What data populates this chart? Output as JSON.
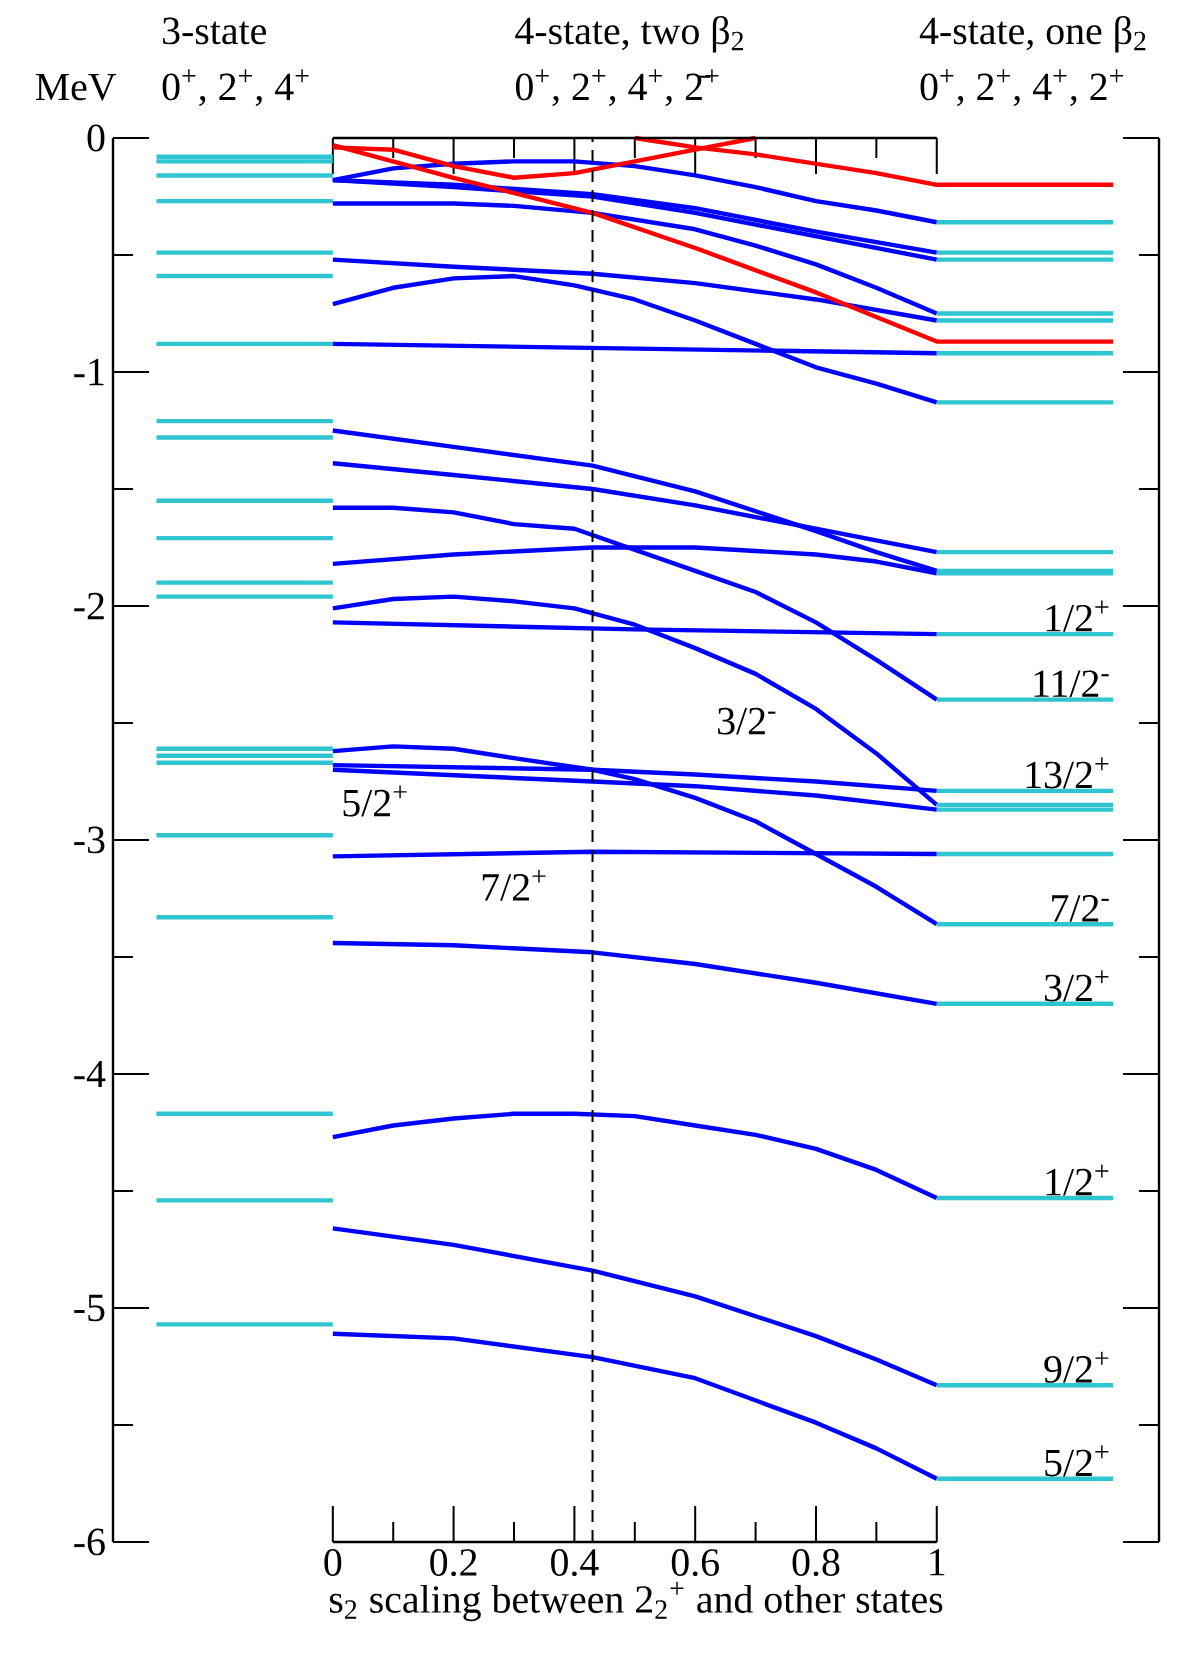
{
  "chart_data": {
    "type": "line",
    "title": "4-state, two β$_{2}$",
    "subtitle": "0$^{+}$, 2$^{+}$, 4$^{+}$, 2̄$^{+}$",
    "xlabel": "s$_{2}$ scaling between 2$_{2}$$^{+}$ and other states",
    "ylabel": "MeV",
    "xlim": [
      -0.364,
      1.368
    ],
    "ylim": [
      -6,
      0
    ],
    "xticks": [
      0,
      {
        "value": 0.1,
        "label": null
      },
      0.2,
      {
        "value": 0.3,
        "label": null
      },
      0.4,
      {
        "value": 0.5,
        "label": null
      },
      0.6,
      {
        "value": 0.7,
        "label": null
      },
      0.8,
      {
        "value": 0.9,
        "label": null
      },
      1
    ],
    "yticks": [
      0,
      {
        "value": -0.5,
        "label": null
      },
      -1,
      {
        "value": -1.5,
        "label": null
      },
      -2,
      {
        "value": -2.5,
        "label": null
      },
      -3,
      {
        "value": -3.5,
        "label": null
      },
      -4,
      {
        "value": -4.5,
        "label": null
      },
      -5,
      {
        "value": -5.5,
        "label": null
      },
      -6
    ],
    "ref_lines": [
      {
        "axis": "x",
        "value": 0.43,
        "color": "#000000",
        "line_style": "dashed"
      }
    ],
    "annotations": [
      "3-state",
      "0$^{+}$, 2$^{+}$, 4$^{+}$",
      "4-state, one β$_{2}$",
      "0$^{+}$, 2$^{+}$, 4$^{+}$, 2$^{+}$",
      {
        "text": "1/2$^{+}$",
        "y": -2.12
      },
      {
        "text": "11/2$^{-}$",
        "y": -2.4
      },
      {
        "text": "13/2$^{+}$",
        "y": -2.79
      },
      {
        "text": "7/2$^{-}$",
        "y": -3.36
      },
      {
        "text": "3/2$^{+}$",
        "y": -3.7
      },
      {
        "text": "1/2$^{+}$",
        "y": -4.53
      },
      {
        "text": "9/2$^{+}$",
        "y": -5.33
      },
      {
        "text": "5/2$^{+}$",
        "y": -5.73
      },
      "3/2$^{-}$",
      "5/2$^{+}$",
      "7/2$^{+}$"
    ],
    "series": [
      {
        "color": "#2ec4d0",
        "x": [
          -0.292,
          0
        ],
        "values": [
          -0.08,
          -0.08
        ]
      },
      {
        "color": "#2ec4d0",
        "x": [
          -0.292,
          0
        ],
        "values": [
          -0.1,
          -0.1
        ]
      },
      {
        "color": "#2ec4d0",
        "x": [
          -0.292,
          0
        ],
        "values": [
          -0.16,
          -0.16
        ]
      },
      {
        "color": "#2ec4d0",
        "x": [
          -0.292,
          0
        ],
        "values": [
          -0.27,
          -0.27
        ]
      },
      {
        "color": "#2ec4d0",
        "x": [
          -0.292,
          0
        ],
        "values": [
          -0.49,
          -0.49
        ]
      },
      {
        "color": "#2ec4d0",
        "x": [
          -0.292,
          0
        ],
        "values": [
          -0.59,
          -0.59
        ]
      },
      {
        "color": "#2ec4d0",
        "x": [
          -0.292,
          0
        ],
        "values": [
          -0.88,
          -0.88
        ]
      },
      {
        "color": "#2ec4d0",
        "x": [
          -0.292,
          0
        ],
        "values": [
          -1.21,
          -1.21
        ]
      },
      {
        "color": "#2ec4d0",
        "x": [
          -0.292,
          0
        ],
        "values": [
          -1.28,
          -1.28
        ]
      },
      {
        "color": "#2ec4d0",
        "x": [
          -0.292,
          0
        ],
        "values": [
          -1.55,
          -1.55
        ]
      },
      {
        "color": "#2ec4d0",
        "x": [
          -0.292,
          0
        ],
        "values": [
          -1.71,
          -1.71
        ]
      },
      {
        "color": "#2ec4d0",
        "x": [
          -0.292,
          0
        ],
        "values": [
          -1.9,
          -1.9
        ]
      },
      {
        "color": "#2ec4d0",
        "x": [
          -0.292,
          0
        ],
        "values": [
          -1.96,
          -1.96
        ]
      },
      {
        "color": "#2ec4d0",
        "x": [
          -0.292,
          0
        ],
        "values": [
          -2.61,
          -2.61
        ]
      },
      {
        "color": "#2ec4d0",
        "x": [
          -0.292,
          0
        ],
        "values": [
          -2.64,
          -2.64
        ]
      },
      {
        "color": "#2ec4d0",
        "x": [
          -0.292,
          0
        ],
        "values": [
          -2.67,
          -2.67
        ]
      },
      {
        "color": "#2ec4d0",
        "x": [
          -0.292,
          0
        ],
        "values": [
          -2.98,
          -2.98
        ]
      },
      {
        "color": "#2ec4d0",
        "x": [
          -0.292,
          0
        ],
        "values": [
          -3.33,
          -3.33
        ]
      },
      {
        "color": "#2ec4d0",
        "x": [
          -0.292,
          0
        ],
        "values": [
          -4.17,
          -4.17
        ]
      },
      {
        "color": "#2ec4d0",
        "x": [
          -0.292,
          0
        ],
        "values": [
          -4.54,
          -4.54
        ]
      },
      {
        "color": "#2ec4d0",
        "x": [
          -0.292,
          0
        ],
        "values": [
          -5.07,
          -5.07
        ]
      },
      {
        "color": "#0000ff",
        "x": [
          0,
          0.1,
          0.2,
          0.3,
          0.4,
          0.5,
          0.6,
          0.7,
          0.8,
          0.9,
          1
        ],
        "values": [
          -0.18,
          -0.13,
          -0.11,
          -0.1,
          -0.1,
          -0.12,
          -0.16,
          -0.21,
          -0.27,
          -0.31,
          -0.36
        ]
      },
      {
        "color": "#0000ff",
        "x": [
          0,
          0.2,
          0.43,
          0.6,
          0.8,
          1
        ],
        "values": [
          -0.18,
          -0.2,
          -0.24,
          -0.3,
          -0.4,
          -0.49
        ]
      },
      {
        "color": "#0000ff",
        "x": [
          0,
          0.2,
          0.43,
          0.6,
          0.8,
          1
        ],
        "values": [
          -0.18,
          -0.21,
          -0.25,
          -0.32,
          -0.42,
          -0.52
        ]
      },
      {
        "color": "#0000ff",
        "x": [
          0,
          0.2,
          0.3,
          0.43,
          0.6,
          0.7,
          0.8,
          0.9,
          1
        ],
        "values": [
          -0.28,
          -0.28,
          -0.29,
          -0.32,
          -0.39,
          -0.46,
          -0.54,
          -0.64,
          -0.75
        ]
      },
      {
        "color": "#0000ff",
        "x": [
          0,
          0.2,
          0.43,
          0.6,
          0.8,
          1
        ],
        "values": [
          -0.52,
          -0.55,
          -0.58,
          -0.62,
          -0.69,
          -0.78
        ]
      },
      {
        "color": "#0000ff",
        "x": [
          0,
          0.1,
          0.2,
          0.3,
          0.4,
          0.5,
          0.6,
          0.7,
          0.8,
          0.9,
          1
        ],
        "values": [
          -0.71,
          -0.64,
          -0.6,
          -0.59,
          -0.63,
          -0.69,
          -0.78,
          -0.88,
          -0.98,
          -1.05,
          -1.13
        ]
      },
      {
        "color": "#0000ff",
        "x": [
          0,
          0.5,
          1
        ],
        "values": [
          -0.88,
          -0.9,
          -0.92
        ]
      },
      {
        "color": "#0000ff",
        "x": [
          0,
          0.2,
          0.43,
          0.6,
          0.8,
          0.9,
          1
        ],
        "values": [
          -1.25,
          -1.32,
          -1.4,
          -1.51,
          -1.68,
          -1.77,
          -1.85
        ]
      },
      {
        "color": "#0000ff",
        "x": [
          0,
          0.2,
          0.43,
          0.6,
          0.8,
          1
        ],
        "values": [
          -1.39,
          -1.44,
          -1.5,
          -1.57,
          -1.67,
          -1.77
        ]
      },
      {
        "color": "#0000ff",
        "x": [
          0,
          0.1,
          0.2,
          0.3,
          0.4,
          0.5,
          0.6,
          0.7,
          0.8,
          0.9,
          1
        ],
        "values": [
          -1.58,
          -1.58,
          -1.6,
          -1.65,
          -1.67,
          -1.76,
          -1.85,
          -1.94,
          -2.07,
          -2.23,
          -2.4
        ]
      },
      {
        "color": "#0000ff",
        "x": [
          0,
          0.2,
          0.43,
          0.6,
          0.8,
          0.9,
          1
        ],
        "values": [
          -1.82,
          -1.78,
          -1.75,
          -1.75,
          -1.78,
          -1.81,
          -1.86
        ]
      },
      {
        "color": "#0000ff",
        "x": [
          0,
          0.1,
          0.2,
          0.3,
          0.4,
          0.5,
          0.6,
          0.7,
          0.8,
          0.9,
          1
        ],
        "values": [
          -2.01,
          -1.97,
          -1.96,
          -1.98,
          -2.01,
          -2.08,
          -2.18,
          -2.29,
          -2.44,
          -2.63,
          -2.85
        ]
      },
      {
        "color": "#0000ff",
        "x": [
          0,
          0.5,
          1
        ],
        "values": [
          -2.07,
          -2.1,
          -2.12
        ]
      },
      {
        "color": "#0000ff",
        "x": [
          0,
          0.1,
          0.2,
          0.3,
          0.43,
          0.5,
          0.6,
          0.7,
          0.8,
          0.9,
          1
        ],
        "values": [
          -2.62,
          -2.6,
          -2.61,
          -2.65,
          -2.7,
          -2.74,
          -2.82,
          -2.92,
          -3.06,
          -3.2,
          -3.36
        ]
      },
      {
        "color": "#0000ff",
        "x": [
          0,
          0.43,
          0.6,
          0.8,
          1
        ],
        "values": [
          -2.68,
          -2.7,
          -2.72,
          -2.75,
          -2.79
        ]
      },
      {
        "color": "#0000ff",
        "x": [
          0,
          0.43,
          0.6,
          0.8,
          1
        ],
        "values": [
          -2.7,
          -2.75,
          -2.77,
          -2.81,
          -2.87
        ]
      },
      {
        "color": "#0000ff",
        "x": [
          0,
          0.43,
          1
        ],
        "values": [
          -3.07,
          -3.05,
          -3.06
        ]
      },
      {
        "color": "#0000ff",
        "x": [
          0,
          0.2,
          0.43,
          0.6,
          0.8,
          1
        ],
        "values": [
          -3.44,
          -3.45,
          -3.48,
          -3.53,
          -3.61,
          -3.7
        ]
      },
      {
        "color": "#0000ff",
        "x": [
          0,
          0.1,
          0.2,
          0.3,
          0.4,
          0.5,
          0.6,
          0.7,
          0.8,
          0.9,
          1
        ],
        "values": [
          -4.27,
          -4.22,
          -4.19,
          -4.17,
          -4.17,
          -4.18,
          -4.22,
          -4.26,
          -4.32,
          -4.41,
          -4.53
        ]
      },
      {
        "color": "#0000ff",
        "x": [
          0,
          0.2,
          0.43,
          0.6,
          0.8,
          0.9,
          1
        ],
        "values": [
          -4.66,
          -4.73,
          -4.84,
          -4.95,
          -5.12,
          -5.22,
          -5.33
        ]
      },
      {
        "color": "#0000ff",
        "x": [
          0,
          0.2,
          0.43,
          0.6,
          0.8,
          0.9,
          1
        ],
        "values": [
          -5.11,
          -5.13,
          -5.21,
          -5.3,
          -5.49,
          -5.6,
          -5.73
        ]
      },
      {
        "color": "#ff0000",
        "x": [
          0,
          0.2,
          0.43,
          0.6,
          0.8,
          1,
          1.292
        ],
        "values": [
          -0.03,
          -0.17,
          -0.32,
          -0.47,
          -0.66,
          -0.87,
          -0.87
        ]
      },
      {
        "color": "#ff0000",
        "x": [
          0,
          0.1,
          0.2,
          0.3,
          0.4,
          0.5,
          0.6,
          0.7
        ],
        "values": [
          -0.04,
          -0.05,
          -0.12,
          -0.17,
          -0.15,
          -0.1,
          -0.05,
          0
        ]
      },
      {
        "color": "#ff0000",
        "x": [
          0.5,
          0.6,
          0.7,
          0.8,
          0.9,
          1,
          1.292
        ],
        "values": [
          0,
          -0.04,
          -0.07,
          -0.11,
          -0.15,
          -0.2,
          -0.2
        ]
      },
      {
        "color": "#2ec4d0",
        "x": [
          1,
          1.292
        ],
        "values": [
          -0.36,
          -0.36
        ]
      },
      {
        "color": "#2ec4d0",
        "x": [
          1,
          1.292
        ],
        "values": [
          -0.49,
          -0.49
        ]
      },
      {
        "color": "#2ec4d0",
        "x": [
          1,
          1.292
        ],
        "values": [
          -0.52,
          -0.52
        ]
      },
      {
        "color": "#2ec4d0",
        "x": [
          1,
          1.292
        ],
        "values": [
          -0.75,
          -0.75
        ]
      },
      {
        "color": "#2ec4d0",
        "x": [
          1,
          1.292
        ],
        "values": [
          -0.78,
          -0.78
        ]
      },
      {
        "color": "#2ec4d0",
        "x": [
          1,
          1.292
        ],
        "values": [
          -0.92,
          -0.92
        ]
      },
      {
        "color": "#2ec4d0",
        "x": [
          1,
          1.292
        ],
        "values": [
          -1.13,
          -1.13
        ]
      },
      {
        "color": "#2ec4d0",
        "x": [
          1,
          1.292
        ],
        "values": [
          -1.77,
          -1.77
        ]
      },
      {
        "color": "#2ec4d0",
        "x": [
          1,
          1.292
        ],
        "values": [
          -1.85,
          -1.85
        ]
      },
      {
        "color": "#2ec4d0",
        "x": [
          1,
          1.292
        ],
        "values": [
          -1.86,
          -1.86
        ]
      },
      {
        "color": "#2ec4d0",
        "x": [
          1,
          1.292
        ],
        "values": [
          -2.12,
          -2.12
        ]
      },
      {
        "color": "#2ec4d0",
        "x": [
          1,
          1.292
        ],
        "values": [
          -2.4,
          -2.4
        ]
      },
      {
        "color": "#2ec4d0",
        "x": [
          1,
          1.292
        ],
        "values": [
          -2.79,
          -2.79
        ]
      },
      {
        "color": "#2ec4d0",
        "x": [
          1,
          1.292
        ],
        "values": [
          -2.85,
          -2.85
        ]
      },
      {
        "color": "#2ec4d0",
        "x": [
          1,
          1.292
        ],
        "values": [
          -2.87,
          -2.87
        ]
      },
      {
        "color": "#2ec4d0",
        "x": [
          1,
          1.292
        ],
        "values": [
          -3.06,
          -3.06
        ]
      },
      {
        "color": "#2ec4d0",
        "x": [
          1,
          1.292
        ],
        "values": [
          -3.36,
          -3.36
        ]
      },
      {
        "color": "#2ec4d0",
        "x": [
          1,
          1.292
        ],
        "values": [
          -3.7,
          -3.7
        ]
      },
      {
        "color": "#2ec4d0",
        "x": [
          1,
          1.292
        ],
        "values": [
          -4.53,
          -4.53
        ]
      },
      {
        "color": "#2ec4d0",
        "x": [
          1,
          1.292
        ],
        "values": [
          -5.33,
          -5.33
        ]
      },
      {
        "color": "#2ec4d0",
        "x": [
          1,
          1.292
        ],
        "values": [
          -5.73,
          -5.73
        ]
      }
    ]
  }
}
